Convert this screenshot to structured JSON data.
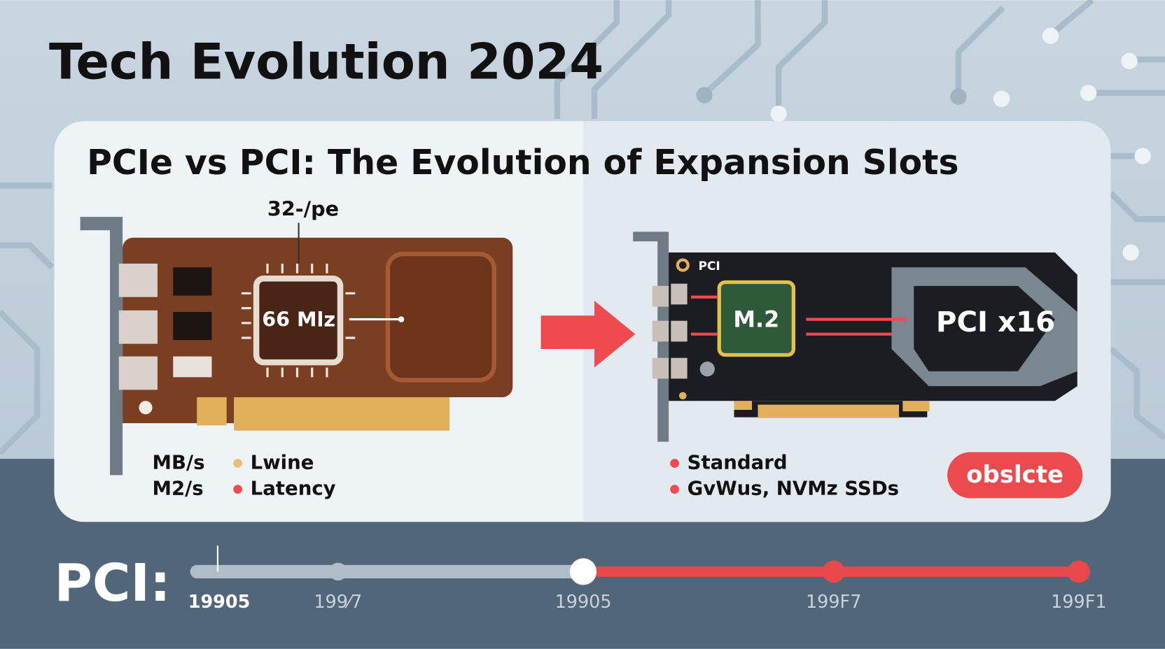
{
  "header": {
    "title": "Tech Evolution 2024"
  },
  "card": {
    "title": "PCIe vs PCI: The Evolution of Expansion Slots",
    "left": {
      "chip_caption": "32-/pe",
      "chip_label": "66 Mlz",
      "legend_units": [
        "MB/s",
        "M2/s"
      ],
      "legend": [
        "Lwine",
        "Latency"
      ]
    },
    "right": {
      "card_label": "PCI",
      "chip_label": "M.2",
      "slot_label": "PCI x16",
      "legend": [
        "Standard",
        "GvWus, NVMz SSDs"
      ],
      "badge": "obslcte"
    }
  },
  "timeline": {
    "label": "PCI:",
    "ticks": [
      "19905",
      "199⁄7",
      "19905",
      "199F7",
      "199F1"
    ]
  }
}
